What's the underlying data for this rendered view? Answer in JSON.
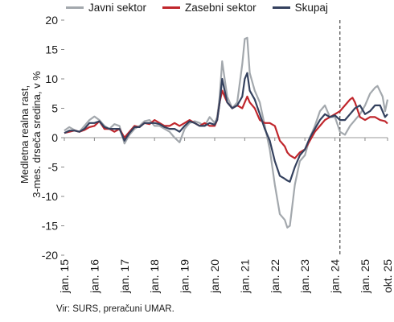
{
  "chart_data": {
    "type": "line",
    "ylabel_line1": "Medletna realna rast,",
    "ylabel_line2": "3-mes. drseča sredina, v %",
    "ylim": [
      -20,
      20
    ],
    "yticks": [
      -20,
      -15,
      -10,
      -5,
      0,
      5,
      10,
      15,
      20
    ],
    "x_tick_labels": [
      "jan. 15",
      "jan. 16",
      "jan. 17",
      "jan. 18",
      "jan. 19",
      "jan. 20",
      "jan. 21",
      "jan. 22",
      "jan. 23",
      "jan. 24",
      "jan. 25",
      "okt. 25"
    ],
    "x_range": [
      "2015-01",
      "2025-10"
    ],
    "forecast_start": "2024-03",
    "legend_position": "top",
    "series": [
      {
        "name": "Javni sektor",
        "color": "#a3a8ad",
        "points": [
          [
            "2015-01",
            1.2
          ],
          [
            "2015-03",
            1.8
          ],
          [
            "2015-05",
            1.3
          ],
          [
            "2015-07",
            1.0
          ],
          [
            "2015-09",
            2.0
          ],
          [
            "2015-11",
            3.0
          ],
          [
            "2016-01",
            3.6
          ],
          [
            "2016-03",
            3.0
          ],
          [
            "2016-05",
            2.0
          ],
          [
            "2016-07",
            1.5
          ],
          [
            "2016-09",
            2.3
          ],
          [
            "2016-11",
            2.0
          ],
          [
            "2017-01",
            -1.0
          ],
          [
            "2017-03",
            0.5
          ],
          [
            "2017-05",
            1.5
          ],
          [
            "2017-07",
            2.0
          ],
          [
            "2017-09",
            2.8
          ],
          [
            "2017-11",
            3.0
          ],
          [
            "2018-01",
            2.0
          ],
          [
            "2018-03",
            2.0
          ],
          [
            "2018-05",
            1.5
          ],
          [
            "2018-07",
            1.0
          ],
          [
            "2018-09",
            0.0
          ],
          [
            "2018-11",
            -0.8
          ],
          [
            "2019-01",
            1.5
          ],
          [
            "2019-03",
            2.5
          ],
          [
            "2019-05",
            2.8
          ],
          [
            "2019-07",
            2.5
          ],
          [
            "2019-09",
            2.0
          ],
          [
            "2019-11",
            3.5
          ],
          [
            "2020-01",
            2.5
          ],
          [
            "2020-02",
            3.5
          ],
          [
            "2020-03",
            7.0
          ],
          [
            "2020-04",
            13.0
          ],
          [
            "2020-05",
            10.0
          ],
          [
            "2020-06",
            7.0
          ],
          [
            "2020-08",
            5.0
          ],
          [
            "2020-10",
            6.0
          ],
          [
            "2020-12",
            12.5
          ],
          [
            "2021-01",
            16.8
          ],
          [
            "2021-02",
            17.0
          ],
          [
            "2021-03",
            11.0
          ],
          [
            "2021-05",
            8.0
          ],
          [
            "2021-07",
            6.0
          ],
          [
            "2021-09",
            2.0
          ],
          [
            "2021-11",
            -2.0
          ],
          [
            "2022-01",
            -8.0
          ],
          [
            "2022-03",
            -13.0
          ],
          [
            "2022-05",
            -14.0
          ],
          [
            "2022-06",
            -15.3
          ],
          [
            "2022-07",
            -15.0
          ],
          [
            "2022-09",
            -8.0
          ],
          [
            "2022-11",
            -4.0
          ],
          [
            "2023-01",
            -3.0
          ],
          [
            "2023-03",
            0.0
          ],
          [
            "2023-05",
            2.0
          ],
          [
            "2023-07",
            4.5
          ],
          [
            "2023-09",
            5.5
          ],
          [
            "2023-11",
            3.5
          ],
          [
            "2024-01",
            3.5
          ],
          [
            "2024-03",
            1.0
          ],
          [
            "2024-05",
            0.5
          ],
          [
            "2024-07",
            2.0
          ],
          [
            "2024-09",
            3.0
          ],
          [
            "2024-11",
            4.0
          ],
          [
            "2025-01",
            5.5
          ],
          [
            "2025-03",
            7.5
          ],
          [
            "2025-05",
            8.5
          ],
          [
            "2025-06",
            8.8
          ],
          [
            "2025-08",
            7.0
          ],
          [
            "2025-09",
            4.5
          ],
          [
            "2025-10",
            6.5
          ]
        ]
      },
      {
        "name": "Zasebni sektor",
        "color": "#c0262c",
        "points": [
          [
            "2015-01",
            0.8
          ],
          [
            "2015-03",
            1.0
          ],
          [
            "2015-05",
            1.2
          ],
          [
            "2015-07",
            1.0
          ],
          [
            "2015-09",
            1.3
          ],
          [
            "2015-11",
            1.8
          ],
          [
            "2016-01",
            2.0
          ],
          [
            "2016-03",
            2.8
          ],
          [
            "2016-05",
            1.5
          ],
          [
            "2016-07",
            1.5
          ],
          [
            "2016-09",
            1.0
          ],
          [
            "2016-11",
            1.5
          ],
          [
            "2017-01",
            0.0
          ],
          [
            "2017-03",
            1.0
          ],
          [
            "2017-05",
            2.0
          ],
          [
            "2017-07",
            1.8
          ],
          [
            "2017-09",
            2.5
          ],
          [
            "2017-11",
            2.3
          ],
          [
            "2018-01",
            3.0
          ],
          [
            "2018-03",
            2.5
          ],
          [
            "2018-05",
            2.0
          ],
          [
            "2018-07",
            2.0
          ],
          [
            "2018-09",
            2.5
          ],
          [
            "2018-11",
            2.0
          ],
          [
            "2019-01",
            2.5
          ],
          [
            "2019-03",
            3.0
          ],
          [
            "2019-05",
            2.5
          ],
          [
            "2019-07",
            2.0
          ],
          [
            "2019-09",
            2.5
          ],
          [
            "2019-11",
            2.0
          ],
          [
            "2020-01",
            2.0
          ],
          [
            "2020-02",
            3.0
          ],
          [
            "2020-03",
            6.0
          ],
          [
            "2020-04",
            8.0
          ],
          [
            "2020-05",
            7.0
          ],
          [
            "2020-06",
            6.0
          ],
          [
            "2020-08",
            5.0
          ],
          [
            "2020-10",
            5.5
          ],
          [
            "2020-12",
            5.0
          ],
          [
            "2021-01",
            6.0
          ],
          [
            "2021-02",
            7.0
          ],
          [
            "2021-03",
            6.0
          ],
          [
            "2021-05",
            5.0
          ],
          [
            "2021-07",
            3.0
          ],
          [
            "2021-09",
            2.5
          ],
          [
            "2021-11",
            2.5
          ],
          [
            "2022-01",
            2.0
          ],
          [
            "2022-03",
            -0.5
          ],
          [
            "2022-05",
            -1.5
          ],
          [
            "2022-06",
            -2.5
          ],
          [
            "2022-07",
            -3.0
          ],
          [
            "2022-09",
            -3.5
          ],
          [
            "2022-11",
            -2.5
          ],
          [
            "2023-01",
            -2.0
          ],
          [
            "2023-03",
            -0.5
          ],
          [
            "2023-05",
            1.0
          ],
          [
            "2023-07",
            2.0
          ],
          [
            "2023-09",
            3.0
          ],
          [
            "2023-11",
            3.5
          ],
          [
            "2024-01",
            4.0
          ],
          [
            "2024-03",
            4.5
          ],
          [
            "2024-05",
            5.5
          ],
          [
            "2024-07",
            6.5
          ],
          [
            "2024-08",
            6.8
          ],
          [
            "2024-09",
            6.0
          ],
          [
            "2024-11",
            3.5
          ],
          [
            "2025-01",
            3.0
          ],
          [
            "2025-03",
            3.5
          ],
          [
            "2025-05",
            3.5
          ],
          [
            "2025-07",
            3.0
          ],
          [
            "2025-09",
            2.8
          ],
          [
            "2025-10",
            2.4
          ]
        ]
      },
      {
        "name": "Skupaj",
        "color": "#34415e",
        "points": [
          [
            "2015-01",
            0.8
          ],
          [
            "2015-03",
            1.2
          ],
          [
            "2015-05",
            1.2
          ],
          [
            "2015-07",
            1.0
          ],
          [
            "2015-09",
            1.5
          ],
          [
            "2015-11",
            2.5
          ],
          [
            "2016-01",
            2.5
          ],
          [
            "2016-03",
            2.8
          ],
          [
            "2016-05",
            1.8
          ],
          [
            "2016-07",
            1.5
          ],
          [
            "2016-09",
            1.5
          ],
          [
            "2016-11",
            1.5
          ],
          [
            "2017-01",
            -0.5
          ],
          [
            "2017-03",
            0.8
          ],
          [
            "2017-05",
            1.8
          ],
          [
            "2017-07",
            1.8
          ],
          [
            "2017-09",
            2.5
          ],
          [
            "2017-11",
            2.5
          ],
          [
            "2018-01",
            2.5
          ],
          [
            "2018-03",
            2.3
          ],
          [
            "2018-05",
            1.8
          ],
          [
            "2018-07",
            1.5
          ],
          [
            "2018-09",
            1.5
          ],
          [
            "2018-11",
            1.0
          ],
          [
            "2019-01",
            2.0
          ],
          [
            "2019-03",
            2.8
          ],
          [
            "2019-05",
            2.5
          ],
          [
            "2019-07",
            2.0
          ],
          [
            "2019-09",
            2.0
          ],
          [
            "2019-11",
            2.5
          ],
          [
            "2020-01",
            2.2
          ],
          [
            "2020-02",
            3.0
          ],
          [
            "2020-03",
            6.0
          ],
          [
            "2020-04",
            10.0
          ],
          [
            "2020-05",
            8.0
          ],
          [
            "2020-06",
            6.0
          ],
          [
            "2020-08",
            5.0
          ],
          [
            "2020-10",
            5.5
          ],
          [
            "2020-12",
            7.0
          ],
          [
            "2021-01",
            10.0
          ],
          [
            "2021-02",
            11.0
          ],
          [
            "2021-03",
            8.0
          ],
          [
            "2021-05",
            6.5
          ],
          [
            "2021-07",
            4.0
          ],
          [
            "2021-09",
            1.5
          ],
          [
            "2021-11",
            -0.5
          ],
          [
            "2022-01",
            -4.0
          ],
          [
            "2022-03",
            -6.5
          ],
          [
            "2022-05",
            -7.0
          ],
          [
            "2022-06",
            -7.3
          ],
          [
            "2022-07",
            -7.5
          ],
          [
            "2022-09",
            -5.0
          ],
          [
            "2022-11",
            -3.0
          ],
          [
            "2023-01",
            -2.0
          ],
          [
            "2023-03",
            0.0
          ],
          [
            "2023-05",
            1.5
          ],
          [
            "2023-07",
            3.0
          ],
          [
            "2023-09",
            4.0
          ],
          [
            "2023-11",
            3.5
          ],
          [
            "2024-01",
            3.8
          ],
          [
            "2024-03",
            3.0
          ],
          [
            "2024-05",
            3.0
          ],
          [
            "2024-07",
            4.0
          ],
          [
            "2024-09",
            5.0
          ],
          [
            "2024-11",
            5.5
          ],
          [
            "2025-01",
            4.0
          ],
          [
            "2025-03",
            4.5
          ],
          [
            "2025-05",
            5.5
          ],
          [
            "2025-07",
            5.5
          ],
          [
            "2025-09",
            3.5
          ],
          [
            "2025-10",
            4.0
          ]
        ]
      }
    ]
  },
  "source": "Vir: SURS, preračuni UMAR."
}
